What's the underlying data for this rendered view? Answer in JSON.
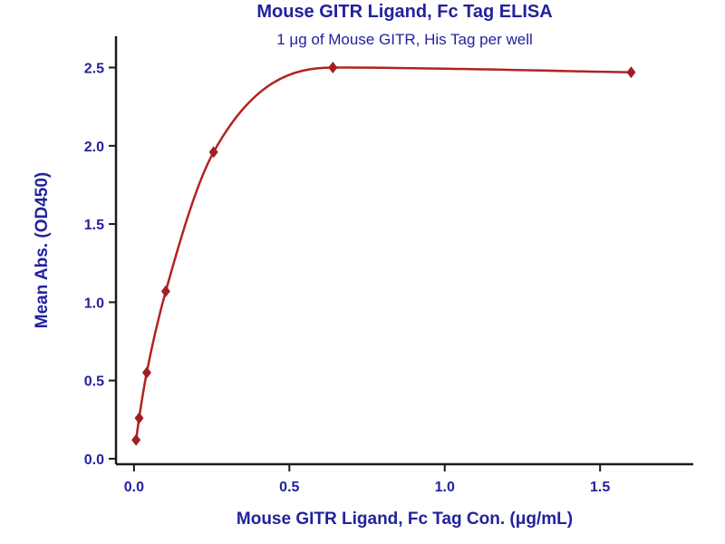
{
  "chart_data": {
    "type": "scatter",
    "title": "Mouse GITR Ligand, Fc Tag ELISA",
    "subtitle": "1 μg of Mouse GITR, His Tag per well",
    "xlabel": "Mouse GITR Ligand, Fc Tag Con. (μg/mL)",
    "ylabel": "Mean Abs. (OD450)",
    "x": [
      0.0066,
      0.0164,
      0.041,
      0.102,
      0.256,
      0.64,
      1.6
    ],
    "y": [
      0.12,
      0.26,
      0.55,
      1.07,
      1.96,
      2.5,
      2.47
    ],
    "xticks": [
      0.0,
      0.5,
      1.0,
      1.5
    ],
    "yticks": [
      0.0,
      0.5,
      1.0,
      1.5,
      2.0,
      2.5
    ],
    "xlim": [
      -0.058,
      1.8
    ],
    "ylim": [
      -0.035,
      2.7
    ],
    "curve_style": "smooth 4PL-like fit through points",
    "legend": "none",
    "grid": false,
    "colors": {
      "line": "#b22222",
      "marker": "#a01e24",
      "text": "#22229e",
      "axis": "#1a1a1a"
    }
  }
}
